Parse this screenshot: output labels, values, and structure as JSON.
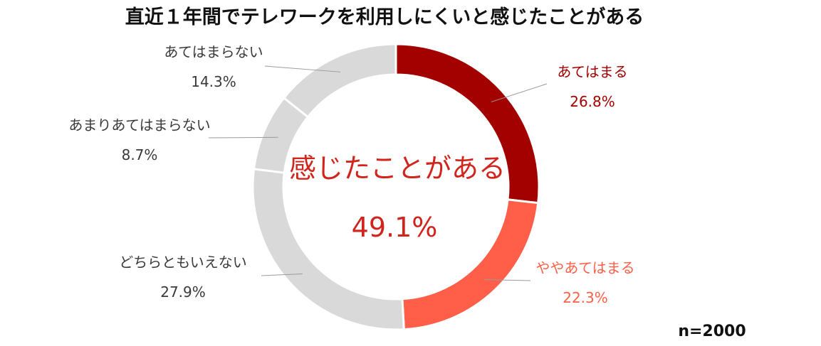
{
  "chart_data": {
    "type": "pie",
    "title": "直近１年間でテレワークを利用しにくいと感じたことがある",
    "slices": [
      {
        "name": "あてはまる",
        "value": 26.8,
        "label": "26.8%",
        "color": "#a30000",
        "label_color": "#a30000"
      },
      {
        "name": "ややあてはまる",
        "value": 22.3,
        "label": "22.3%",
        "color": "#ff5f48",
        "label_color": "#ff5f48"
      },
      {
        "name": "どちらともいえない",
        "value": 27.9,
        "label": "27.9%",
        "color": "#d9d9d9",
        "label_color": "#3a3a3a"
      },
      {
        "name": "あまりあてはまらない",
        "value": 8.7,
        "label": "8.7%",
        "color": "#d9d9d9",
        "label_color": "#3a3a3a"
      },
      {
        "name": "あてはまらない",
        "value": 14.3,
        "label": "14.3%",
        "color": "#d9d9d9",
        "label_color": "#3a3a3a"
      }
    ],
    "center_label": "感じたことがある",
    "center_value": "49.1%",
    "note": "n=2000",
    "legend": "none"
  }
}
